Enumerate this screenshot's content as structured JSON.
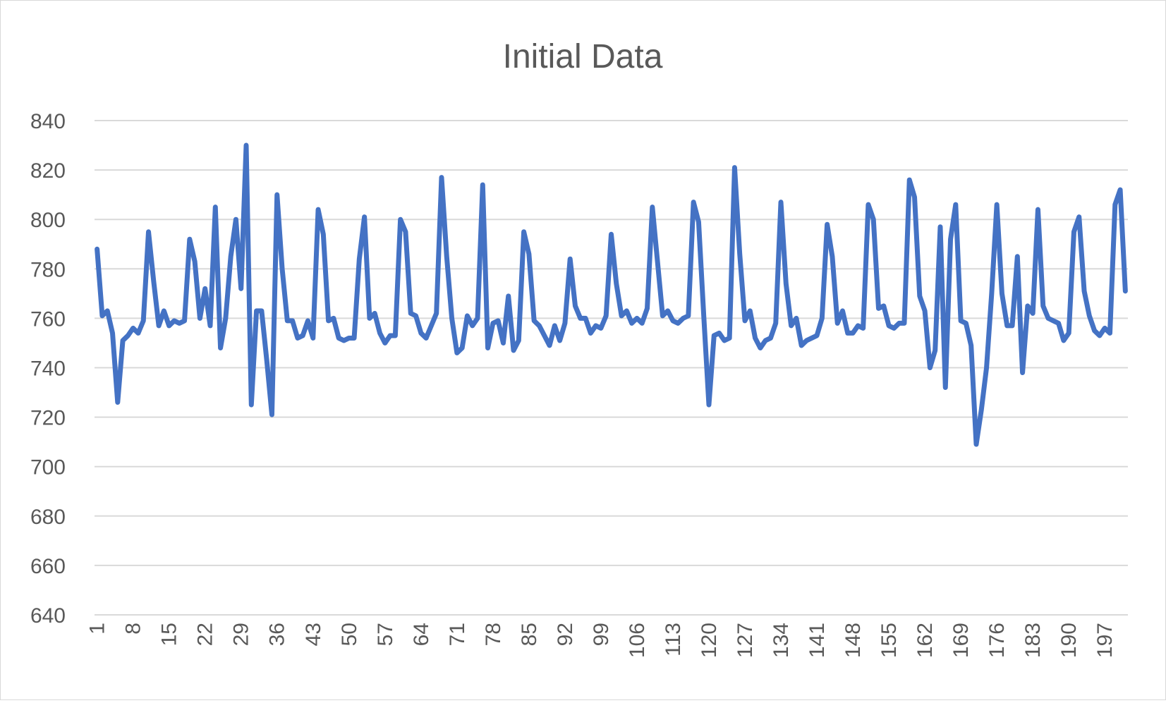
{
  "chart_data": {
    "type": "line",
    "title": "Initial Data",
    "xlabel": "",
    "ylabel": "",
    "ylim": [
      640,
      840
    ],
    "yticks": [
      640,
      660,
      680,
      700,
      720,
      740,
      760,
      780,
      800,
      820,
      840
    ],
    "x_tick_labels": [
      "1",
      "8",
      "15",
      "22",
      "29",
      "36",
      "43",
      "50",
      "57",
      "64",
      "71",
      "78",
      "85",
      "92",
      "99",
      "106",
      "113",
      "120",
      "127",
      "134",
      "141",
      "148",
      "155",
      "162",
      "169",
      "176",
      "183",
      "190",
      "197"
    ],
    "grid": true,
    "legend": "none",
    "series": [
      {
        "color": "#4472c4",
        "values": [
          788,
          761,
          763,
          754,
          726,
          751,
          753,
          756,
          754,
          759,
          795,
          775,
          757,
          763,
          757,
          759,
          758,
          759,
          792,
          783,
          760,
          772,
          757,
          805,
          748,
          760,
          785,
          800,
          772,
          830,
          725,
          763,
          763,
          743,
          721,
          810,
          780,
          759,
          759,
          752,
          753,
          759,
          752,
          804,
          794,
          759,
          760,
          752,
          751,
          752,
          752,
          784,
          801,
          760,
          762,
          754,
          750,
          753,
          753,
          800,
          795,
          762,
          761,
          754,
          752,
          757,
          762,
          817,
          785,
          760,
          746,
          748,
          761,
          757,
          760,
          814,
          748,
          758,
          759,
          750,
          769,
          747,
          751,
          795,
          786,
          759,
          757,
          753,
          749,
          757,
          751,
          758,
          784,
          765,
          760,
          760,
          754,
          757,
          756,
          761,
          794,
          774,
          761,
          763,
          758,
          760,
          758,
          764,
          805,
          783,
          761,
          763,
          759,
          758,
          760,
          761,
          807,
          799,
          761,
          725,
          753,
          754,
          751,
          752,
          821,
          786,
          759,
          763,
          752,
          748,
          751,
          752,
          758,
          807,
          774,
          757,
          760,
          749,
          751,
          752,
          753,
          760,
          798,
          785,
          758,
          763,
          754,
          754,
          757,
          756,
          806,
          800,
          764,
          765,
          757,
          756,
          758,
          758,
          816,
          809,
          769,
          763,
          740,
          747,
          797,
          732,
          792,
          806,
          759,
          758,
          749,
          709,
          723,
          740,
          770,
          806,
          770,
          757,
          757,
          785,
          738,
          765,
          762,
          804,
          765,
          760,
          759,
          758,
          751,
          754,
          795,
          801,
          771,
          761,
          755,
          753,
          756,
          754,
          806,
          812,
          771
        ]
      }
    ]
  }
}
